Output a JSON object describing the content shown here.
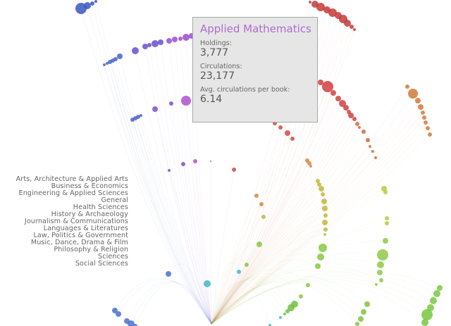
{
  "legend": [
    "Arts, Architecture & Applied Arts",
    "Business & Economics",
    "Engineering & Applied Sciences",
    "General",
    "Health Sciences",
    "History & Archaeology",
    "Journalism & Communications",
    "Languages & Literatures",
    "Law, Politics & Government",
    "Music, Dance, Drama & Film",
    "Philosophy & Religion",
    "Sciences",
    "Social Sciences"
  ],
  "tooltip": {
    "title": "Applied Mathematics",
    "holdings_label": "Holdings:",
    "holdings_value": "3,777",
    "circulations_label": "Circulations:",
    "circulations_value": "23,177",
    "avg_label": "Avg. circulations per book:",
    "avg_value": "6.14"
  },
  "chart_data": {
    "type": "scatter",
    "title": "",
    "hub": [
      300,
      460
    ],
    "clusters": [
      {
        "color": "#3a56c0",
        "points": [
          [
            115,
            12,
            8
          ],
          [
            124,
            8,
            5
          ],
          [
            131,
            5,
            3
          ],
          [
            136,
            2,
            2
          ]
        ]
      },
      {
        "color": "#4a62c8",
        "points": [
          [
            148,
            92,
            2
          ],
          [
            152,
            90,
            2
          ],
          [
            156,
            88,
            3
          ],
          [
            160,
            86,
            3
          ],
          [
            164,
            84,
            3
          ],
          [
            170,
            80,
            4
          ]
        ]
      },
      {
        "color": "#6a4ed0",
        "points": [
          [
            192,
            72,
            5
          ],
          [
            206,
            66,
            4
          ],
          [
            212,
            64,
            3
          ],
          [
            220,
            62,
            5
          ],
          [
            228,
            60,
            4
          ]
        ]
      },
      {
        "color": "#9a4cd0",
        "points": [
          [
            240,
            58,
            4
          ],
          [
            248,
            56,
            4
          ],
          [
            256,
            55,
            3
          ],
          [
            264,
            53,
            5
          ],
          [
            272,
            51,
            4
          ]
        ]
      },
      {
        "color": "#5060c8",
        "points": [
          [
            188,
            170,
            3
          ],
          [
            192,
            168,
            3
          ],
          [
            196,
            166,
            3
          ],
          [
            200,
            164,
            2
          ]
        ]
      },
      {
        "color": "#7a50d0",
        "points": [
          [
            220,
            155,
            4
          ],
          [
            243,
            147,
            3
          ],
          [
            240,
            242,
            2
          ],
          [
            260,
            233,
            3
          ]
        ]
      },
      {
        "color": "#b050d0",
        "points": [
          [
            264,
            143,
            7
          ],
          [
            277,
            229,
            3
          ]
        ]
      },
      {
        "color": "#cc4a4a",
        "points": [
          [
            299,
            229,
            1
          ],
          [
            332,
            241,
            3
          ]
        ]
      },
      {
        "color": "#c43a3a",
        "points": [
          [
            440,
            3,
            2
          ],
          [
            447,
            6,
            5
          ],
          [
            455,
            10,
            6
          ],
          [
            464,
            14,
            5
          ],
          [
            472,
            18,
            6
          ],
          [
            480,
            22,
            5
          ],
          [
            487,
            27,
            6
          ],
          [
            493,
            33,
            5
          ],
          [
            499,
            38,
            3
          ],
          [
            503,
            42,
            2
          ]
        ]
      },
      {
        "color": "#d04040",
        "points": [
          [
            455,
            117,
            4
          ],
          [
            465,
            123,
            8
          ],
          [
            473,
            132,
            4
          ],
          [
            480,
            140,
            4
          ],
          [
            486,
            147,
            5
          ],
          [
            491,
            153,
            4
          ],
          [
            495,
            159,
            3
          ],
          [
            498,
            164,
            4
          ],
          [
            503,
            169,
            3
          ]
        ]
      },
      {
        "color": "#d04a40",
        "points": [
          [
            390,
            175,
            3
          ],
          [
            398,
            181,
            3
          ],
          [
            408,
            189,
            4
          ],
          [
            415,
            197,
            3
          ]
        ]
      },
      {
        "color": "#d06838",
        "points": [
          [
            507,
            176,
            3
          ],
          [
            510,
            181,
            2
          ],
          [
            516,
            187,
            3
          ],
          [
            522,
            199,
            3
          ],
          [
            525,
            208,
            2
          ],
          [
            529,
            215,
            2
          ],
          [
            533,
            224,
            2
          ]
        ]
      },
      {
        "color": "#d07a38",
        "points": [
          [
            578,
            123,
            3
          ],
          [
            586,
            133,
            7
          ],
          [
            593,
            143,
            4
          ],
          [
            597,
            152,
            4
          ],
          [
            600,
            160,
            3
          ],
          [
            602,
            167,
            3
          ],
          [
            604,
            174,
            3
          ],
          [
            607,
            182,
            3
          ],
          [
            610,
            191,
            3
          ]
        ]
      },
      {
        "color": "#d08a40",
        "points": [
          [
            436,
            228,
            3
          ],
          [
            439,
            232,
            3
          ],
          [
            441,
            236,
            2
          ],
          [
            364,
            278,
            3
          ],
          [
            371,
            290,
            3
          ]
        ]
      },
      {
        "color": "#c0b83a",
        "points": [
          [
            451,
            257,
            3
          ],
          [
            453,
            262,
            3
          ],
          [
            456,
            268,
            4
          ],
          [
            458,
            276,
            3
          ],
          [
            460,
            286,
            4
          ],
          [
            461,
            296,
            4
          ],
          [
            462,
            306,
            3
          ],
          [
            461,
            316,
            4
          ],
          [
            462,
            326,
            3
          ],
          [
            461,
            333,
            2
          ],
          [
            374,
            308,
            3
          ]
        ]
      },
      {
        "color": "#b8c83c",
        "points": [
          [
            545,
            268,
            4
          ],
          [
            547,
            273,
            3
          ],
          [
            549,
            310,
            3
          ],
          [
            549,
            317,
            3
          ]
        ]
      },
      {
        "color": "#90c848",
        "points": [
          [
            547,
            342,
            4
          ],
          [
            543,
            362,
            8
          ],
          [
            540,
            376,
            5
          ],
          [
            539,
            387,
            4
          ],
          [
            541,
            398,
            3
          ],
          [
            534,
            404,
            2
          ]
        ]
      },
      {
        "color": "#88c840",
        "points": [
          [
            458,
            352,
            6
          ],
          [
            455,
            365,
            5
          ],
          [
            451,
            378,
            4
          ],
          [
            368,
            347,
            4
          ],
          [
            350,
            376,
            3
          ],
          [
            437,
            405,
            3
          ],
          [
            427,
            421,
            3
          ]
        ]
      },
      {
        "color": "#70c040",
        "points": [
          [
            418,
            432,
            5
          ],
          [
            413,
            437,
            5
          ],
          [
            408,
            442,
            3
          ],
          [
            404,
            446,
            2
          ]
        ]
      },
      {
        "color": "#78c840",
        "points": [
          [
            624,
            409,
            4
          ],
          [
            620,
            417,
            5
          ],
          [
            615,
            427,
            5
          ],
          [
            611,
            437,
            5
          ],
          [
            606,
            447,
            8
          ],
          [
            603,
            458,
            5
          ]
        ]
      },
      {
        "color": "#80c440",
        "points": [
          [
            521,
            432,
            4
          ],
          [
            516,
            443,
            4
          ],
          [
            512,
            453,
            4
          ],
          [
            507,
            460,
            3
          ]
        ]
      },
      {
        "color": "#40b8c8",
        "points": [
          [
            294,
            403,
            5
          ],
          [
            339,
            386,
            3
          ],
          [
            398,
            451,
            2
          ],
          [
            383,
            462,
            2
          ]
        ]
      },
      {
        "color": "#4a70d0",
        "points": [
          [
            239,
            389,
            4
          ],
          [
            163,
            441,
            4
          ],
          [
            168,
            446,
            4
          ],
          [
            180,
            456,
            4
          ],
          [
            186,
            460,
            5
          ],
          [
            192,
            463,
            3
          ]
        ]
      }
    ]
  }
}
